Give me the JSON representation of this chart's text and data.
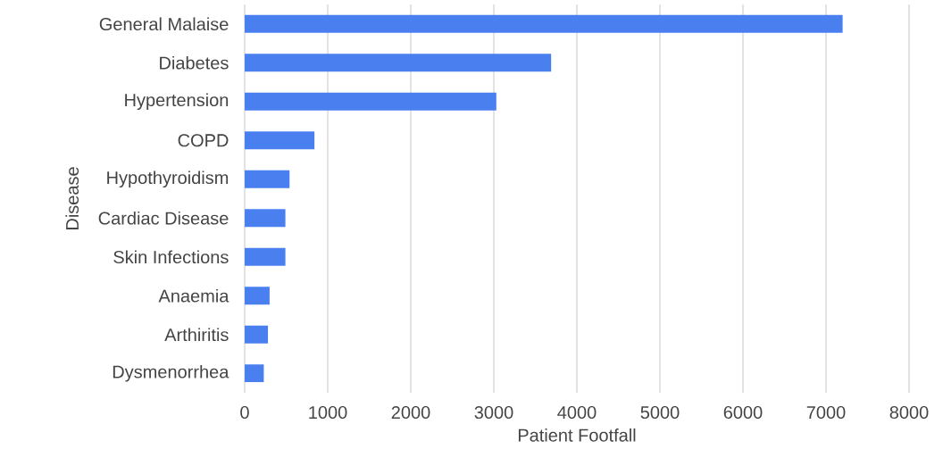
{
  "chart_data": {
    "type": "bar",
    "orientation": "horizontal",
    "xlabel": "Patient Footfall",
    "ylabel": "Disease",
    "categories": [
      "General Malaise",
      "Diabetes",
      "Hypertension",
      "COPD",
      "Hypothyroidism",
      "Cardiac Disease",
      "Skin Infections",
      "Anaemia",
      "Arthiritis",
      "Dysmenorrhea"
    ],
    "values": [
      7200,
      3690,
      3030,
      840,
      540,
      490,
      490,
      300,
      280,
      230
    ],
    "color": "#4a7ff0",
    "xlim": [
      0,
      8000
    ],
    "xticks": [
      0,
      1000,
      2000,
      3000,
      4000,
      5000,
      6000,
      7000,
      8000
    ],
    "grid": "x"
  }
}
